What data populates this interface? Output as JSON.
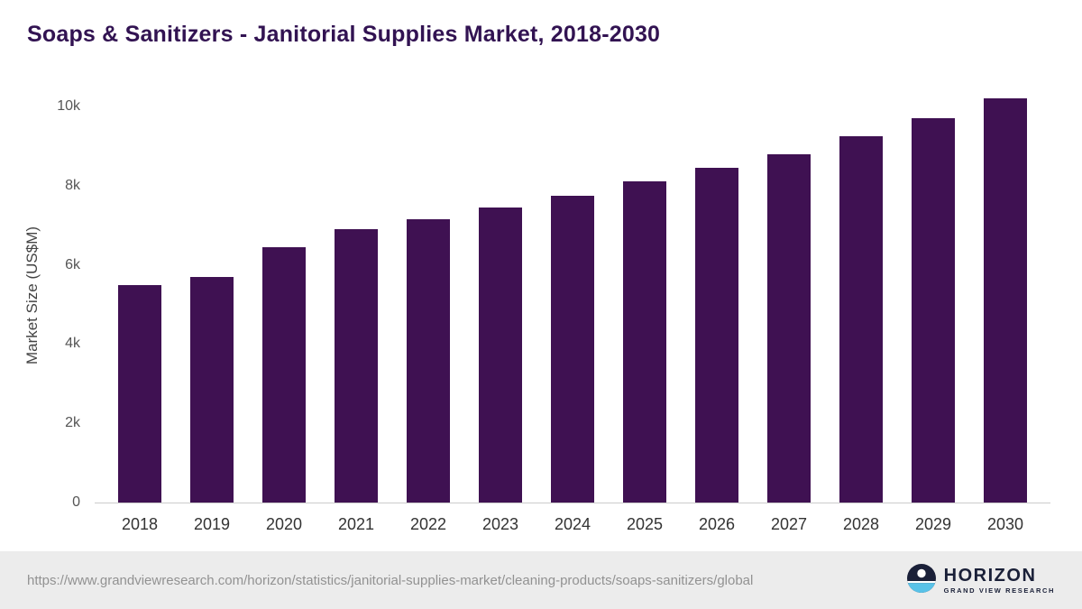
{
  "title": "Soaps & Sanitizers - Janitorial Supplies Market, 2018-2030",
  "chart_data": {
    "type": "bar",
    "categories": [
      "2018",
      "2019",
      "2020",
      "2021",
      "2022",
      "2023",
      "2024",
      "2025",
      "2026",
      "2027",
      "2028",
      "2029",
      "2030"
    ],
    "values": [
      5500,
      5700,
      6450,
      6900,
      7150,
      7450,
      7750,
      8100,
      8450,
      8800,
      9250,
      9700,
      10200
    ],
    "title": "Soaps & Sanitizers - Janitorial Supplies Market, 2018-2030",
    "xlabel": "",
    "ylabel": "Market Size (US$M)",
    "ylim": [
      0,
      10500
    ],
    "yticks": {
      "values": [
        0,
        2000,
        4000,
        6000,
        8000,
        10000
      ],
      "labels": [
        "0",
        "2k",
        "4k",
        "6k",
        "8k",
        "10k"
      ]
    },
    "grid": false,
    "legend": false,
    "bar_color": "#3f1152"
  },
  "footer": {
    "source_url": "https://www.grandviewresearch.com/horizon/statistics/janitorial-supplies-market/cleaning-products/soaps-sanitizers/global",
    "logo": {
      "name": "HORIZON",
      "subtitle": "GRAND VIEW RESEARCH"
    }
  },
  "colors": {
    "title": "#321352",
    "bar": "#3f1152",
    "axis_text": "#555555",
    "footer_bg": "#ececec",
    "logo_navy": "#1a2038",
    "logo_blue": "#59c2e8"
  }
}
